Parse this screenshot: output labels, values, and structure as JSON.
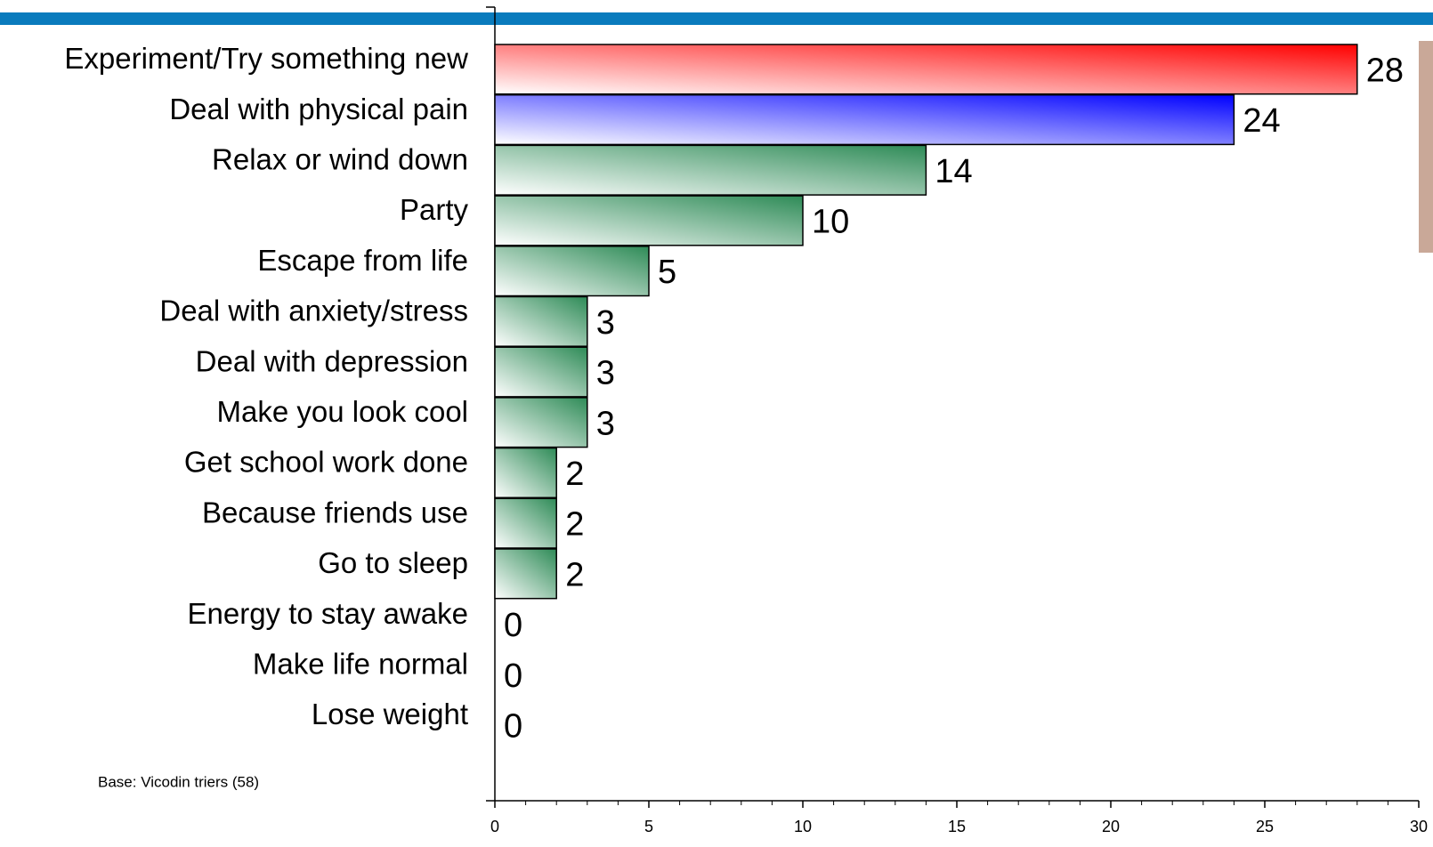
{
  "chart_data": {
    "type": "hbar",
    "categories": [
      "Experiment/Try something new",
      "Deal with physical pain",
      "Relax or wind down",
      "Party",
      "Escape from life",
      "Deal with anxiety/stress",
      "Deal with depression",
      "Make you look cool",
      "Get school work done",
      "Because friends use",
      "Go to sleep",
      "Energy to stay awake",
      "Make life normal",
      "Lose weight"
    ],
    "values": [
      28,
      24,
      14,
      10,
      5,
      3,
      3,
      3,
      2,
      2,
      2,
      0,
      0,
      0
    ],
    "colors": [
      "#ff0000",
      "#0000ff",
      "#2e8b57",
      "#2e8b57",
      "#2e8b57",
      "#2e8b57",
      "#2e8b57",
      "#2e8b57",
      "#2e8b57",
      "#2e8b57",
      "#2e8b57",
      "#2e8b57",
      "#2e8b57",
      "#2e8b57"
    ],
    "xlim": [
      0,
      30
    ],
    "xticks": [
      0,
      5,
      10,
      15,
      20,
      25,
      30
    ],
    "note": "Base: Vicodin triers (58)"
  }
}
